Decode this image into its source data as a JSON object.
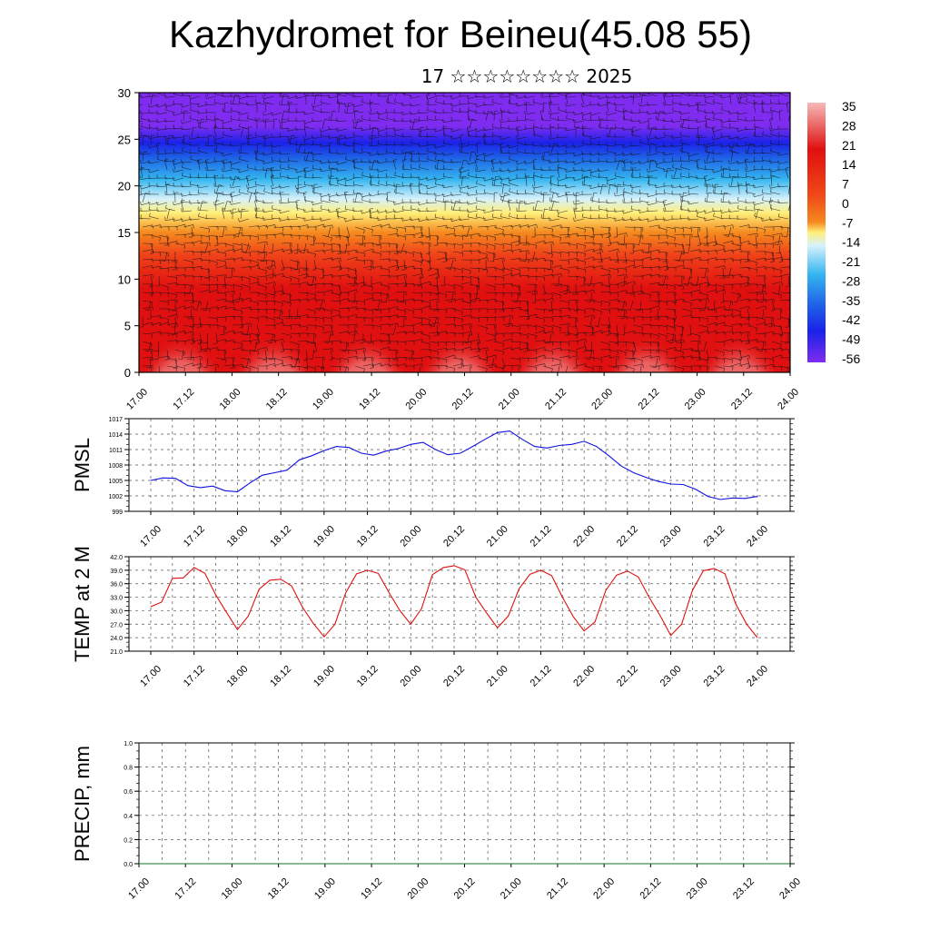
{
  "header": {
    "title": "Kazhydromet for Beineu(45.08 55)",
    "subtitle": "17 ☆☆☆☆☆☆☆☆ 2025"
  },
  "chart_data": [
    {
      "type": "heatmap",
      "title": "",
      "ylabel": "",
      "ylim": [
        0,
        30
      ],
      "yticks": [
        "0",
        "5",
        "10",
        "15",
        "20",
        "25",
        "30"
      ],
      "x_tick_labels": [
        "17.00",
        "17.12",
        "18.00",
        "18.12",
        "19.00",
        "19.12",
        "20.00",
        "20.12",
        "21.00",
        "21.12",
        "22.00",
        "22.12",
        "23.00",
        "23.12",
        "24.00"
      ],
      "colorbar_labels": [
        "35",
        "28",
        "21",
        "14",
        "7",
        "0",
        "-7",
        "-14",
        "-21",
        "-28",
        "-35",
        "-42",
        "-49",
        "-56"
      ],
      "colors": {
        "cold": "#7f2cf0",
        "blue": "#1a22e8",
        "cyan": "#35b6f0",
        "light_cyan": "#d7f1fb",
        "yellow": "#fff07a",
        "orange": "#f58a1f",
        "red": "#e01010",
        "pink": "#f6b9b9"
      },
      "overlay": "wind-barbs"
    },
    {
      "type": "line",
      "title": "",
      "ylabel": "PMSL",
      "ylim": [
        999,
        1017
      ],
      "yticks": [
        "999",
        "1002",
        "1005",
        "1008",
        "1011",
        "1014",
        "1017"
      ],
      "x_tick_labels": [
        "17.00",
        "17.12",
        "18.00",
        "18.12",
        "19.00",
        "19.12",
        "20.00",
        "20.12",
        "21.00",
        "21.12",
        "22.00",
        "22.12",
        "23.00",
        "23.12",
        "24.00"
      ],
      "color": "#1010e0",
      "series": [
        {
          "values": [
            1005.0,
            1005.5,
            1005.4,
            1004.0,
            1003.6,
            1003.9,
            1003.0,
            1002.8,
            1004.5,
            1006.0,
            1006.5,
            1007.0,
            1009.0,
            1009.8,
            1010.8,
            1011.6,
            1011.4,
            1010.3,
            1009.9,
            1010.7,
            1011.2,
            1012.0,
            1012.4,
            1011.0,
            1010.0,
            1010.3,
            1011.6,
            1013.0,
            1014.3,
            1014.6,
            1013.0,
            1011.6,
            1011.3,
            1011.8,
            1012.0,
            1012.6,
            1011.6,
            1009.8,
            1007.8,
            1006.5,
            1005.6,
            1004.8,
            1004.3,
            1004.2,
            1003.3,
            1001.9,
            1001.3,
            1001.6,
            1001.5,
            1001.9
          ]
        }
      ]
    },
    {
      "type": "line",
      "title": "",
      "ylabel": "TEMP at 2 M",
      "ylim": [
        21,
        42
      ],
      "yticks": [
        "21.0",
        "24.0",
        "27.0",
        "30.0",
        "33.0",
        "36.0",
        "39.0",
        "42.0"
      ],
      "x_tick_labels": [
        "17.00",
        "17.12",
        "18.00",
        "18.12",
        "19.00",
        "19.12",
        "20.00",
        "20.12",
        "21.00",
        "21.12",
        "22.00",
        "22.12",
        "23.00",
        "23.12",
        "24.00"
      ],
      "color": "#e01010",
      "series": [
        {
          "values": [
            30.9,
            31.9,
            37.2,
            37.3,
            39.6,
            38.3,
            33.5,
            29.6,
            25.8,
            28.8,
            34.8,
            36.8,
            37.0,
            35.5,
            30.8,
            27.2,
            24.2,
            27.0,
            34.0,
            38.2,
            39.0,
            38.3,
            34.0,
            30.0,
            27.0,
            30.5,
            38.0,
            39.6,
            40.0,
            39.1,
            33.0,
            29.5,
            26.2,
            28.8,
            34.9,
            38.1,
            39.0,
            37.8,
            33.0,
            28.7,
            25.5,
            27.5,
            34.5,
            37.9,
            38.8,
            37.5,
            33.0,
            29.0,
            24.5,
            27.0,
            34.5,
            38.9,
            39.4,
            38.2,
            31.5,
            27.0,
            24.0
          ]
        }
      ]
    },
    {
      "type": "line",
      "title": "",
      "ylabel": "PRECIP, mm",
      "ylim": [
        0,
        1
      ],
      "yticks": [
        "0.0",
        "0.2",
        "0.4",
        "0.6",
        "0.8",
        "1.0"
      ],
      "x_tick_labels": [
        "17.00",
        "17.12",
        "18.00",
        "18.12",
        "19.00",
        "19.12",
        "20.00",
        "20.12",
        "21.00",
        "21.12",
        "22.00",
        "22.12",
        "23.00",
        "23.12",
        "24.00"
      ],
      "color": "#10702a",
      "series": [
        {
          "values": [
            0,
            0,
            0,
            0,
            0,
            0,
            0,
            0,
            0,
            0,
            0,
            0,
            0,
            0,
            0,
            0,
            0,
            0,
            0,
            0,
            0,
            0,
            0,
            0,
            0,
            0,
            0,
            0,
            0,
            0,
            0,
            0,
            0,
            0,
            0,
            0,
            0,
            0,
            0,
            0,
            0,
            0,
            0,
            0,
            0,
            0,
            0,
            0,
            0,
            0,
            0,
            0,
            0,
            0,
            0,
            0,
            0
          ]
        }
      ]
    }
  ]
}
